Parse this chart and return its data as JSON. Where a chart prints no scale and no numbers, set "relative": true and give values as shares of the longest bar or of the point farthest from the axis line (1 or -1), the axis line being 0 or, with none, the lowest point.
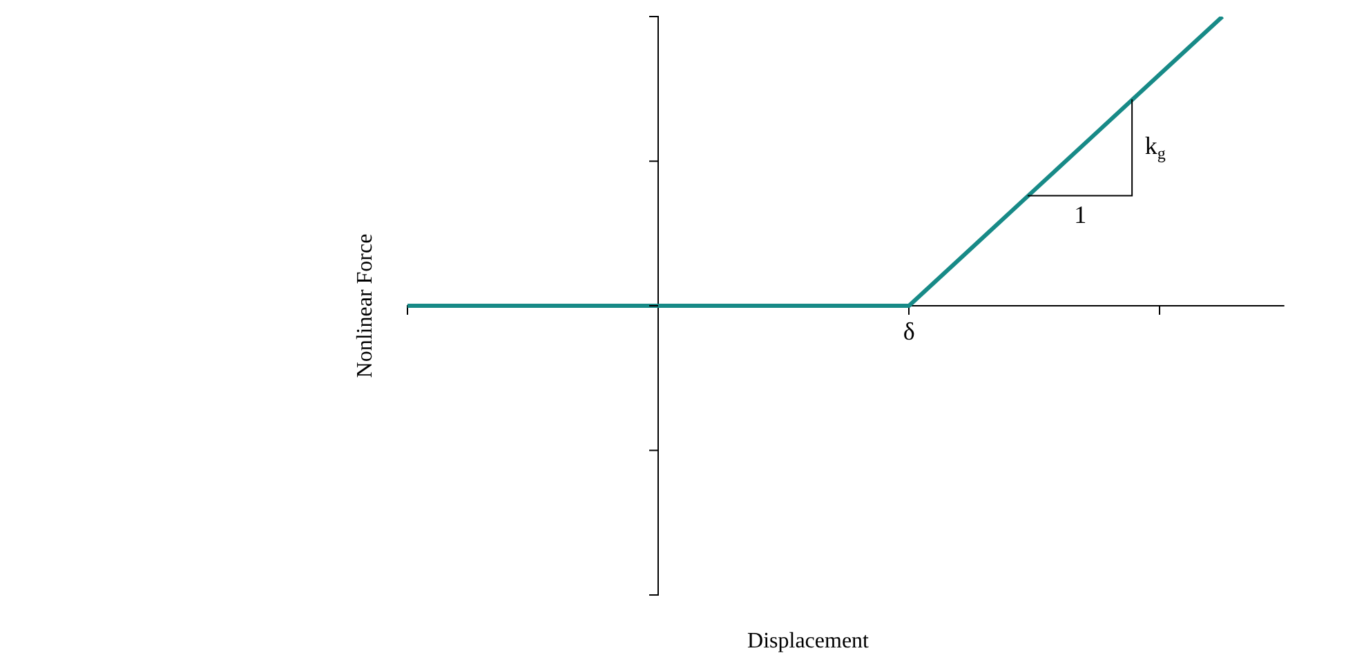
{
  "chart_data": {
    "type": "line",
    "relative": true,
    "ylabel": "Nonlinear Force",
    "categories": [
      null,
      null,
      null,
      null,
      null,
      null,
      null,
      null,
      null,
      null,
      null,
      null,
      null,
      null
    ],
    "series": [
      {
        "color": "#178a87",
        "values": [
          0,
          0,
          0,
          0,
          0,
          0,
          0,
          0,
          0,
          0.2,
          0.4,
          0.6,
          0.8,
          1
        ]
      }
    ],
    "annotations": [
      "k$_{g}$",
      "1",
      "δ",
      "Displacement"
    ],
    "grid": false,
    "legend": false,
    "marker": "none",
    "line_style": "solid"
  }
}
